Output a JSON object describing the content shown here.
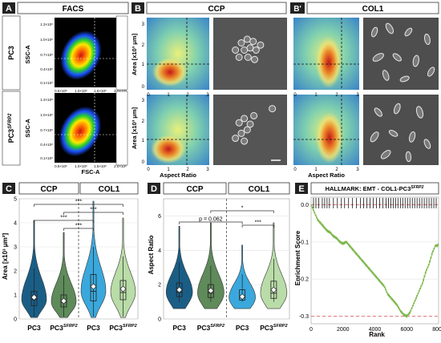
{
  "panels": {
    "A": {
      "letter": "A",
      "title": "FACS",
      "row_labels": [
        "PC3",
        "PC3"
      ],
      "row_label_sup": [
        "",
        "SFRP2"
      ],
      "ylabel": "SSC-A",
      "xlabel": "FSC-A",
      "y_ticks": [
        "1.3×10⁶",
        "1.0×10⁶",
        "0.7×10⁶",
        "0.4×10⁶",
        "0.1×10⁶"
      ],
      "x_ticks": [
        "0.5×10⁶",
        "1.0×10⁶",
        "1.5×10⁶",
        "2.0×10⁶"
      ]
    },
    "B": {
      "letter": "B",
      "title": "CCP",
      "ylabel": "Area [x10³ μm]",
      "xlabel": "Aspect Ratio",
      "y_ticks": [
        "3",
        "2",
        "1",
        "0"
      ],
      "x_ticks": [
        "0",
        "1",
        "2",
        "3"
      ]
    },
    "B2": {
      "letter": "B'",
      "title": "COL1",
      "xlabel": "Aspect Ratio",
      "x_ticks": [
        "0",
        "1",
        "2",
        "3"
      ]
    },
    "C": {
      "letter": "C",
      "group_labels": [
        "CCP",
        "COL1"
      ],
      "ylabel": "Area [x10³ μm²]",
      "y_ticks": [
        "0",
        "1",
        "2",
        "3",
        "4",
        "5"
      ],
      "sig": [
        "***",
        "***",
        "***",
        "***"
      ]
    },
    "D": {
      "letter": "D",
      "group_labels": [
        "CCP",
        "COL1"
      ],
      "ylabel": "Aspect Ratio",
      "y_ticks": [
        "0",
        "2",
        "4",
        "6"
      ],
      "sig": [
        "p = 0.062",
        "*",
        "***"
      ]
    },
    "E": {
      "letter": "E",
      "title": "HALLMARK: EMT - COL1-PC3",
      "title_sup": "SFRP2",
      "ylabel": "Enrichment Score",
      "xlabel": "Rank",
      "y_ticks": [
        "0.0",
        "-0.1",
        "-0.2",
        "-0.3"
      ],
      "x_ticks": [
        "0",
        "2000",
        "4000",
        "6000",
        "8000"
      ]
    }
  },
  "categories": [
    "PC3",
    "PC3",
    "PC3",
    "PC3"
  ],
  "category_sup": [
    "",
    "SFRP2",
    "",
    "SFRP2"
  ],
  "colors": {
    "pc3_ccp": "#1a5e86",
    "pc3sfrp2_ccp": "#5f8a5a",
    "pc3_col1": "#3aa8dc",
    "pc3sfrp2_col1": "#b9dca8",
    "gsea_line": "#7ab648",
    "gsea_ref": "#e06060"
  },
  "chart_data": [
    {
      "type": "violin",
      "panel": "C",
      "categories": [
        "PC3",
        "PC3 SFRP2",
        "PC3",
        "PC3 SFRP2"
      ],
      "groups": [
        "CCP",
        "CCP",
        "COL1",
        "COL1"
      ],
      "ylabel": "Area [x10³ μm²]",
      "ylim": [
        0,
        5
      ],
      "mean": [
        0.9,
        0.75,
        1.35,
        1.25
      ],
      "median": [
        0.8,
        0.7,
        1.15,
        1.1
      ],
      "q1": [
        0.55,
        0.5,
        0.75,
        0.8
      ],
      "q3": [
        1.15,
        1.0,
        1.85,
        1.6
      ],
      "whisker_low": [
        0.1,
        0.1,
        0.1,
        0.1
      ],
      "whisker_high": [
        2.1,
        1.8,
        3.0,
        2.6
      ],
      "max": [
        4.1,
        3.6,
        4.9,
        4.2
      ],
      "significance": [
        "***",
        "***",
        "***",
        "***"
      ]
    },
    {
      "type": "violin",
      "panel": "D",
      "categories": [
        "PC3",
        "PC3 SFRP2",
        "PC3",
        "PC3 SFRP2"
      ],
      "groups": [
        "CCP",
        "CCP",
        "COL1",
        "COL1"
      ],
      "ylabel": "Aspect Ratio",
      "ylim": [
        0,
        7
      ],
      "mean": [
        1.7,
        1.65,
        1.3,
        1.7
      ],
      "median": [
        1.55,
        1.5,
        1.25,
        1.5
      ],
      "q1": [
        1.3,
        1.25,
        1.1,
        1.2
      ],
      "q3": [
        2.1,
        2.0,
        1.7,
        2.2
      ],
      "whisker_low": [
        1.0,
        1.0,
        1.0,
        1.0
      ],
      "whisker_high": [
        3.3,
        3.1,
        2.6,
        3.5
      ],
      "max": [
        5.4,
        5.6,
        4.3,
        5.6
      ],
      "significance": [
        "p = 0.062",
        "*",
        "***"
      ]
    },
    {
      "type": "line",
      "panel": "E",
      "title": "HALLMARK: EMT - COL1-PC3 SFRP2",
      "xlabel": "Rank",
      "ylabel": "Enrichment Score",
      "xlim": [
        0,
        8000
      ],
      "ylim": [
        -0.32,
        0.02
      ],
      "x": [
        0,
        200,
        400,
        600,
        800,
        1000,
        1200,
        1400,
        1600,
        1800,
        2000,
        2200,
        2400,
        2600,
        2800,
        3000,
        3200,
        3400,
        3600,
        3800,
        4000,
        4200,
        4400,
        4600,
        4800,
        5000,
        5200,
        5400,
        5600,
        5800,
        6000,
        6200,
        6400,
        6600,
        6800,
        7000,
        7200,
        7400,
        7600,
        7800,
        8000
      ],
      "y": [
        0.0,
        -0.02,
        -0.04,
        -0.05,
        -0.06,
        -0.07,
        -0.075,
        -0.085,
        -0.09,
        -0.1,
        -0.105,
        -0.1,
        -0.11,
        -0.12,
        -0.13,
        -0.14,
        -0.15,
        -0.16,
        -0.17,
        -0.18,
        -0.19,
        -0.2,
        -0.21,
        -0.22,
        -0.24,
        -0.25,
        -0.26,
        -0.27,
        -0.285,
        -0.295,
        -0.3,
        -0.29,
        -0.27,
        -0.25,
        -0.23,
        -0.21,
        -0.18,
        -0.16,
        -0.13,
        -0.11,
        -0.11
      ],
      "reference_lines": [
        0,
        -0.3
      ],
      "hit_ranks": [
        150,
        300,
        480,
        700,
        850,
        1000,
        1150,
        1400,
        1650,
        1900,
        2100,
        2350,
        2600,
        2850,
        3100,
        3300,
        3500,
        3700,
        3900,
        4100,
        4300,
        4500,
        4700,
        4850,
        5000,
        5150,
        5300,
        5450,
        5600,
        5750,
        5900,
        6050,
        6200,
        6350,
        6500,
        6650,
        6800,
        6950,
        7100,
        7250,
        7400,
        7550,
        7700,
        7850
      ]
    }
  ]
}
